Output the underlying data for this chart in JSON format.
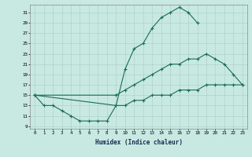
{
  "bg_color": "#c8e8e2",
  "line_color": "#1a6b5a",
  "xlabel": "Humidex (Indice chaleur)",
  "xticks": [
    0,
    1,
    2,
    3,
    4,
    5,
    6,
    7,
    8,
    9,
    10,
    11,
    12,
    13,
    14,
    15,
    16,
    17,
    18,
    19,
    20,
    21,
    22,
    23
  ],
  "yticks": [
    9,
    11,
    13,
    15,
    17,
    19,
    21,
    23,
    25,
    27,
    29,
    31
  ],
  "xlim": [
    -0.5,
    23.5
  ],
  "ylim": [
    8.5,
    32.5
  ],
  "curve1_x": [
    0,
    1,
    2,
    3,
    4,
    5,
    6,
    7,
    8,
    9,
    10,
    11,
    12,
    13,
    14,
    15,
    16,
    17,
    18
  ],
  "curve1_y": [
    15,
    13,
    13,
    12,
    11,
    10,
    10,
    10,
    10,
    13,
    20,
    24,
    25,
    28,
    30,
    31,
    32,
    31,
    29
  ],
  "curve2_x": [
    0,
    9,
    10,
    11,
    12,
    13,
    14,
    15,
    16,
    17,
    18,
    19,
    20,
    21,
    22,
    23
  ],
  "curve2_y": [
    15,
    15,
    16,
    17,
    18,
    19,
    20,
    21,
    21,
    22,
    22,
    23,
    22,
    21,
    19,
    17
  ],
  "curve3_x": [
    0,
    9,
    10,
    11,
    12,
    13,
    14,
    15,
    16,
    17,
    18,
    19,
    20,
    21,
    22,
    23
  ],
  "curve3_y": [
    15,
    13,
    13,
    14,
    14,
    15,
    15,
    15,
    16,
    16,
    16,
    17,
    17,
    17,
    17,
    17
  ]
}
